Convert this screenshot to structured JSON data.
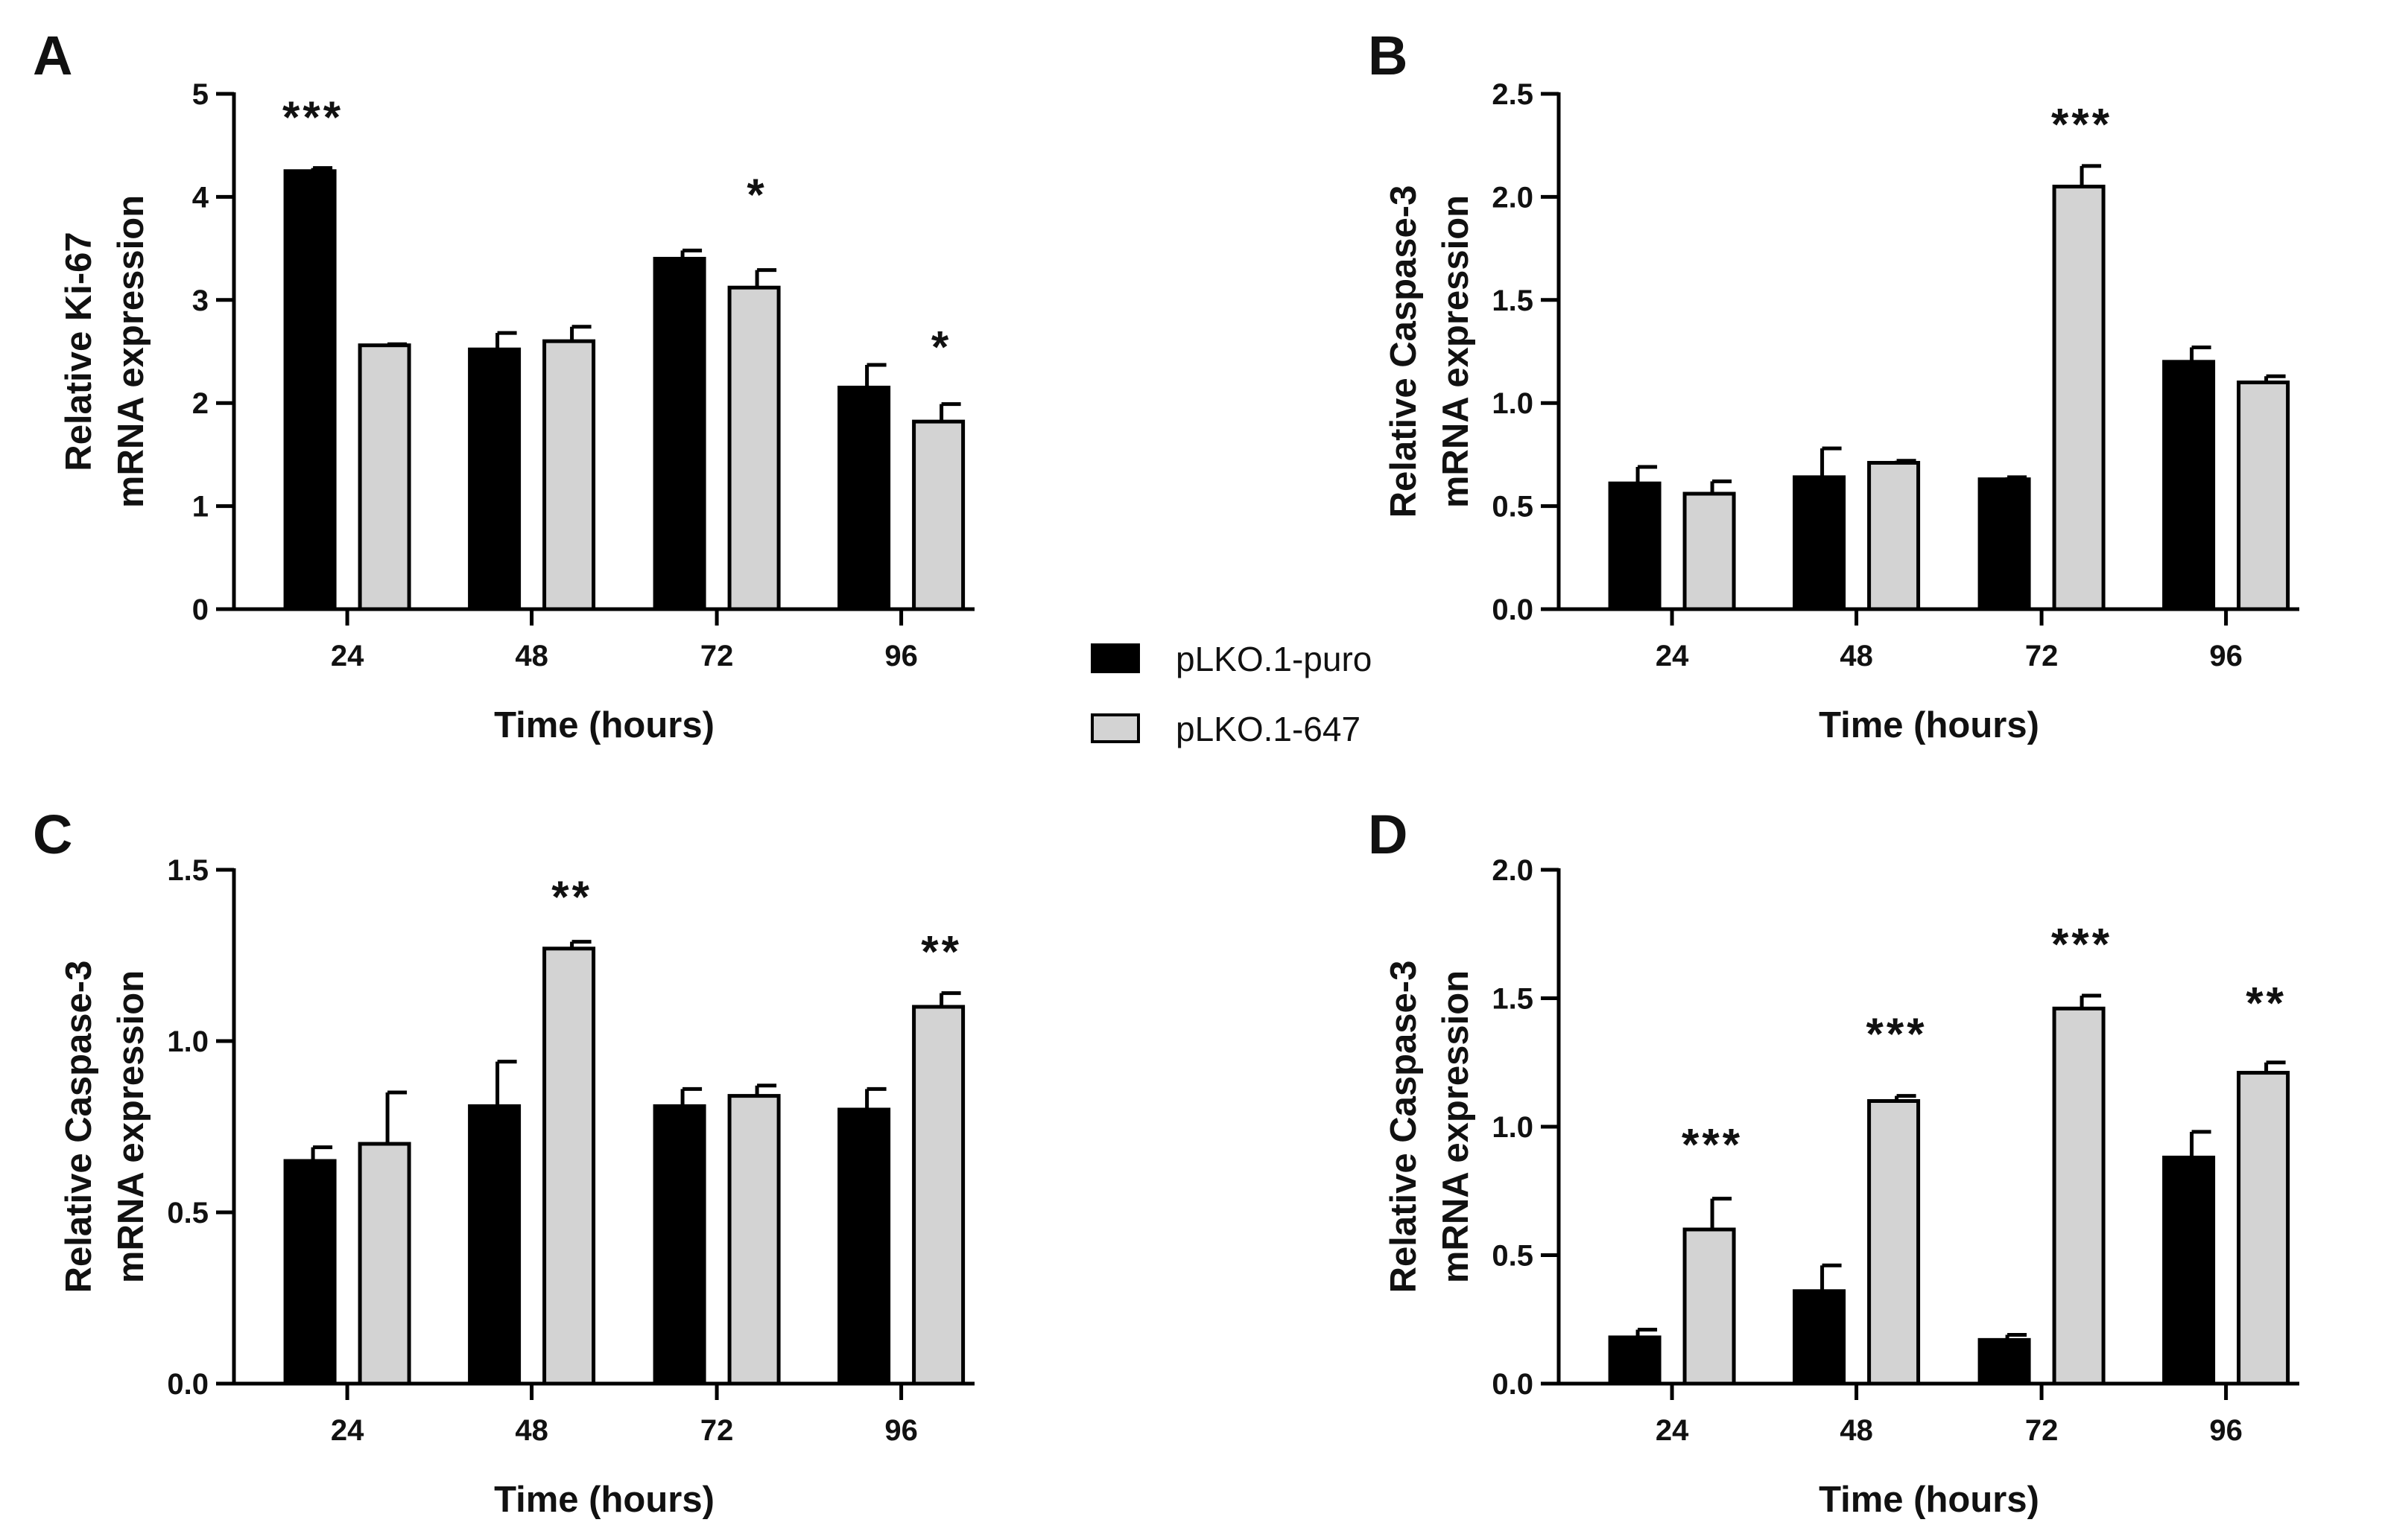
{
  "legend": {
    "items": [
      {
        "label": "pLKO.1-puro",
        "color": "#000000"
      },
      {
        "label": "pLKO.1-647",
        "color": "#d3d3d3"
      }
    ]
  },
  "chart_data": [
    {
      "panel": "A",
      "type": "bar",
      "xlabel": "Time (hours)",
      "ylabel": [
        "Relative Ki-67",
        "mRNA expression"
      ],
      "categories": [
        "24",
        "48",
        "72",
        "96"
      ],
      "ylim": [
        0,
        5
      ],
      "yticks": [
        "0",
        "1",
        "2",
        "3",
        "4",
        "5"
      ],
      "series": [
        {
          "name": "pLKO.1-puro",
          "values": [
            4.25,
            2.52,
            3.4,
            2.15
          ],
          "errors": [
            0.03,
            0.16,
            0.08,
            0.22
          ]
        },
        {
          "name": "pLKO.1-647",
          "values": [
            2.56,
            2.6,
            3.12,
            1.82
          ],
          "errors": [
            0.01,
            0.14,
            0.17,
            0.17
          ]
        }
      ],
      "annotations": [
        {
          "category": 0,
          "series": 0,
          "text": "***",
          "value": 4.87
        },
        {
          "category": 2,
          "series": 1,
          "text": "*",
          "value": 4.12
        },
        {
          "category": 3,
          "series": 1,
          "text": "*",
          "value": 2.64
        }
      ]
    },
    {
      "panel": "B",
      "type": "bar",
      "xlabel": "Time (hours)",
      "ylabel": [
        "Relative Caspase-3",
        "mRNA expression"
      ],
      "categories": [
        "24",
        "48",
        "72",
        "96"
      ],
      "ylim": [
        0,
        2.5
      ],
      "yticks": [
        "0.0",
        "0.5",
        "1.0",
        "1.5",
        "2.0",
        "2.5"
      ],
      "series": [
        {
          "name": "pLKO.1-puro",
          "values": [
            0.61,
            0.64,
            0.63,
            1.2
          ],
          "errors": [
            0.08,
            0.14,
            0.01,
            0.07
          ]
        },
        {
          "name": "pLKO.1-647",
          "values": [
            0.56,
            0.71,
            2.05,
            1.1
          ],
          "errors": [
            0.06,
            0.01,
            0.1,
            0.03
          ]
        }
      ],
      "annotations": [
        {
          "category": 2,
          "series": 1,
          "text": "***",
          "value": 2.4
        }
      ]
    },
    {
      "panel": "C",
      "type": "bar",
      "xlabel": "Time (hours)",
      "ylabel": [
        "Relative Caspase-3",
        "mRNA expression"
      ],
      "categories": [
        "24",
        "48",
        "72",
        "96"
      ],
      "ylim": [
        0,
        1.5
      ],
      "yticks": [
        "0.0",
        "0.5",
        "1.0",
        "1.5"
      ],
      "series": [
        {
          "name": "pLKO.1-puro",
          "values": [
            0.65,
            0.81,
            0.81,
            0.8
          ],
          "errors": [
            0.04,
            0.13,
            0.05,
            0.06
          ]
        },
        {
          "name": "pLKO.1-647",
          "values": [
            0.7,
            1.27,
            0.84,
            1.1
          ],
          "errors": [
            0.15,
            0.02,
            0.03,
            0.04
          ]
        }
      ],
      "annotations": [
        {
          "category": 1,
          "series": 1,
          "text": "**",
          "value": 1.45
        },
        {
          "category": 3,
          "series": 1,
          "text": "**",
          "value": 1.29
        }
      ]
    },
    {
      "panel": "D",
      "type": "bar",
      "xlabel": "Time (hours)",
      "ylabel": [
        "Relative Caspase-3",
        "mRNA expression"
      ],
      "categories": [
        "24",
        "48",
        "72",
        "96"
      ],
      "ylim": [
        0,
        2.0
      ],
      "yticks": [
        "0.0",
        "0.5",
        "1.0",
        "1.5",
        "2.0"
      ],
      "series": [
        {
          "name": "pLKO.1-puro",
          "values": [
            0.18,
            0.36,
            0.17,
            0.88
          ],
          "errors": [
            0.03,
            0.1,
            0.02,
            0.1
          ]
        },
        {
          "name": "pLKO.1-647",
          "values": [
            0.6,
            1.1,
            1.46,
            1.21
          ],
          "errors": [
            0.12,
            0.02,
            0.05,
            0.04
          ]
        }
      ],
      "annotations": [
        {
          "category": 0,
          "series": 1,
          "text": "***",
          "value": 0.97
        },
        {
          "category": 1,
          "series": 1,
          "text": "***",
          "value": 1.4
        },
        {
          "category": 2,
          "series": 1,
          "text": "***",
          "value": 1.75
        },
        {
          "category": 3,
          "series": 1,
          "text": "**",
          "value": 1.52
        }
      ]
    }
  ]
}
